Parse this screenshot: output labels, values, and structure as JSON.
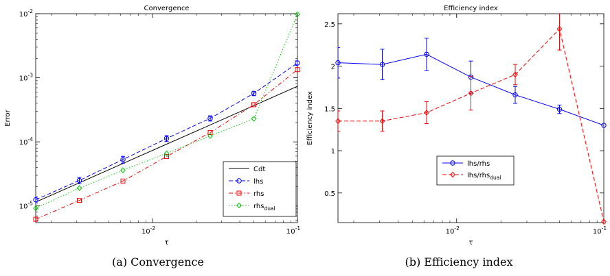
{
  "chart_data": [
    {
      "type": "line",
      "title": "Convergence",
      "xlabel": "τ",
      "ylabel": "Error",
      "x_scale": "log",
      "y_scale": "log",
      "xlim": [
        0.0015625,
        0.1
      ],
      "ylim": [
        5.5e-06,
        0.01
      ],
      "grid": false,
      "legend_position": "bottom-right",
      "x_ticks": [
        {
          "value": 0.01,
          "base": "10",
          "exp": "-2"
        },
        {
          "value": 0.1,
          "base": "10",
          "exp": "-1"
        }
      ],
      "y_ticks": [
        {
          "value": 1e-05,
          "base": "10",
          "exp": "-5"
        },
        {
          "value": 0.0001,
          "base": "10",
          "exp": "-4"
        },
        {
          "value": 0.001,
          "base": "10",
          "exp": "-3"
        },
        {
          "value": 0.01,
          "base": "10",
          "exp": "-2"
        }
      ],
      "x": [
        0.0015625,
        0.003125,
        0.00625,
        0.0125,
        0.025,
        0.05,
        0.1
      ],
      "series": [
        {
          "name": "Cdt",
          "color": "#000000",
          "dash": "solid",
          "marker": "none",
          "values": [
            1.15e-05,
            2.3e-05,
            4.6e-05,
            9.2e-05,
            0.000184,
            0.000368,
            0.000736
          ]
        },
        {
          "name": "lhs",
          "color": "#0000ff",
          "dash": "dashed",
          "marker": "circle",
          "values": [
            1.25e-05,
            2.5e-05,
            5.3e-05,
            0.000113,
            0.000233,
            0.00057,
            0.0017
          ]
        },
        {
          "name": "rhs",
          "color": "#ff0000",
          "dash": "dashdot",
          "marker": "square",
          "values": [
            6.2e-06,
            1.22e-05,
            2.45e-05,
            5.9e-05,
            0.00014,
            0.00038,
            0.00134
          ]
        },
        {
          "name": "rhs",
          "subscript": "dual",
          "color": "#00cc00",
          "dash": "dotted",
          "marker": "diamond",
          "values": [
            9.2e-06,
            1.9e-05,
            3.6e-05,
            6.6e-05,
            0.000124,
            0.00023,
            0.0098
          ]
        }
      ],
      "error_bars": {
        "lhs": [
          1.3e-06,
          2.8e-06,
          6.5e-06,
          1.2e-05,
          2.2e-05,
          4.5e-05,
          0.00014
        ]
      },
      "caption": "(a)  Convergence"
    },
    {
      "type": "line",
      "title": "Efficiency index",
      "xlabel": "τ",
      "ylabel": "Efficiency index",
      "x_scale": "log",
      "y_scale": "linear",
      "xlim": [
        0.0015625,
        0.1
      ],
      "ylim": [
        0.15,
        2.62
      ],
      "grid": false,
      "legend_position": "bottom-left",
      "x_ticks": [
        {
          "value": 0.01,
          "base": "10",
          "exp": "-2"
        },
        {
          "value": 0.1,
          "base": "10",
          "exp": "-1"
        }
      ],
      "y_ticks": [
        {
          "value": 0.5,
          "label": "0.5"
        },
        {
          "value": 1,
          "label": "1"
        },
        {
          "value": 1.5,
          "label": "1.5"
        },
        {
          "value": 2,
          "label": "2"
        },
        {
          "value": 2.5,
          "label": "2.5"
        }
      ],
      "x": [
        0.0015625,
        0.003125,
        0.00625,
        0.0125,
        0.025,
        0.05,
        0.1
      ],
      "series": [
        {
          "name": "lhs/rhs",
          "color": "#0000ff",
          "dash": "solid",
          "marker": "circle",
          "values": [
            2.04,
            2.02,
            2.14,
            1.87,
            1.66,
            1.49,
            1.3
          ],
          "error": [
            0.18,
            0.18,
            0.19,
            0.19,
            0.1,
            0.05,
            0.0
          ]
        },
        {
          "name": "lhs/rhs",
          "subscript": "dual",
          "color": "#ff0000",
          "dash": "dashed",
          "marker": "diamond",
          "values": [
            1.35,
            1.35,
            1.45,
            1.68,
            1.9,
            2.44,
            0.16
          ],
          "error": [
            0.12,
            0.12,
            0.13,
            0.2,
            0.12,
            0.25,
            0.0
          ]
        }
      ],
      "caption": "(b)  Efficiency index"
    }
  ]
}
